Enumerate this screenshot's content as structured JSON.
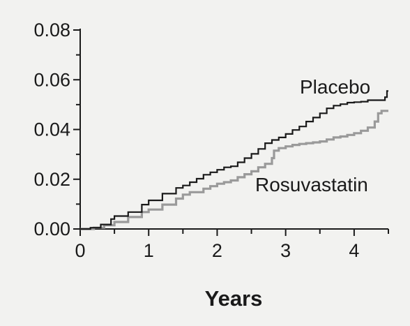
{
  "chart_data": {
    "type": "line",
    "title": "",
    "xlabel": "Years",
    "ylabel": "",
    "xlim": [
      0,
      4.5
    ],
    "ylim": [
      0,
      0.08
    ],
    "grid": false,
    "legend": "none",
    "x_ticks": [
      0,
      1,
      2,
      3,
      4
    ],
    "x_tick_labels": [
      "0",
      "1",
      "2",
      "3",
      "4"
    ],
    "y_ticks": [
      0,
      0.02,
      0.04,
      0.06,
      0.08
    ],
    "y_tick_labels": [
      "0.00",
      "0.02",
      "0.04",
      "0.06",
      "0.08"
    ],
    "series": [
      {
        "name": "Placebo",
        "color": "#1a1a1a",
        "step": true,
        "points": [
          [
            0,
            0
          ],
          [
            0.15,
            0.0005
          ],
          [
            0.3,
            0.0018
          ],
          [
            0.45,
            0.004
          ],
          [
            0.5,
            0.0052
          ],
          [
            0.7,
            0.0068
          ],
          [
            0.9,
            0.0098
          ],
          [
            1.0,
            0.0115
          ],
          [
            1.2,
            0.0142
          ],
          [
            1.4,
            0.0165
          ],
          [
            1.5,
            0.0175
          ],
          [
            1.6,
            0.0188
          ],
          [
            1.7,
            0.0202
          ],
          [
            1.8,
            0.0218
          ],
          [
            1.9,
            0.0228
          ],
          [
            2.0,
            0.0238
          ],
          [
            2.1,
            0.0248
          ],
          [
            2.2,
            0.0252
          ],
          [
            2.3,
            0.0268
          ],
          [
            2.4,
            0.0285
          ],
          [
            2.5,
            0.0302
          ],
          [
            2.6,
            0.0322
          ],
          [
            2.7,
            0.0345
          ],
          [
            2.8,
            0.0358
          ],
          [
            2.9,
            0.0368
          ],
          [
            3.0,
            0.0382
          ],
          [
            3.1,
            0.0398
          ],
          [
            3.2,
            0.0412
          ],
          [
            3.3,
            0.0432
          ],
          [
            3.4,
            0.0448
          ],
          [
            3.5,
            0.0465
          ],
          [
            3.6,
            0.0485
          ],
          [
            3.7,
            0.0496
          ],
          [
            3.8,
            0.0502
          ],
          [
            3.9,
            0.0508
          ],
          [
            4.0,
            0.051
          ],
          [
            4.1,
            0.0512
          ],
          [
            4.2,
            0.0518
          ],
          [
            4.3,
            0.0518
          ],
          [
            4.45,
            0.053
          ],
          [
            4.48,
            0.0555
          ],
          [
            4.5,
            0.0555
          ]
        ]
      },
      {
        "name": "Rosuvastatin",
        "color": "#9a9a9a",
        "step": true,
        "points": [
          [
            0,
            0
          ],
          [
            0.2,
            0.0005
          ],
          [
            0.35,
            0.0015
          ],
          [
            0.5,
            0.0028
          ],
          [
            0.7,
            0.0048
          ],
          [
            0.9,
            0.0068
          ],
          [
            1.0,
            0.0078
          ],
          [
            1.2,
            0.0098
          ],
          [
            1.4,
            0.0122
          ],
          [
            1.5,
            0.0138
          ],
          [
            1.6,
            0.0148
          ],
          [
            1.8,
            0.0162
          ],
          [
            1.9,
            0.0172
          ],
          [
            2.0,
            0.0182
          ],
          [
            2.1,
            0.0188
          ],
          [
            2.2,
            0.0195
          ],
          [
            2.3,
            0.0208
          ],
          [
            2.4,
            0.022
          ],
          [
            2.5,
            0.0232
          ],
          [
            2.6,
            0.0248
          ],
          [
            2.7,
            0.0262
          ],
          [
            2.8,
            0.0285
          ],
          [
            2.83,
            0.0315
          ],
          [
            2.9,
            0.0325
          ],
          [
            3.0,
            0.0332
          ],
          [
            3.1,
            0.0338
          ],
          [
            3.2,
            0.0342
          ],
          [
            3.3,
            0.0345
          ],
          [
            3.4,
            0.0348
          ],
          [
            3.5,
            0.0352
          ],
          [
            3.6,
            0.036
          ],
          [
            3.7,
            0.0368
          ],
          [
            3.8,
            0.0372
          ],
          [
            3.9,
            0.0378
          ],
          [
            4.0,
            0.0385
          ],
          [
            4.1,
            0.0395
          ],
          [
            4.2,
            0.0408
          ],
          [
            4.3,
            0.0432
          ],
          [
            4.35,
            0.0465
          ],
          [
            4.4,
            0.0475
          ],
          [
            4.5,
            0.0475
          ]
        ]
      }
    ],
    "series_labels": [
      {
        "text": "Placebo",
        "near_series": 0
      },
      {
        "text": "Rosuvastatin",
        "near_series": 1
      }
    ]
  }
}
